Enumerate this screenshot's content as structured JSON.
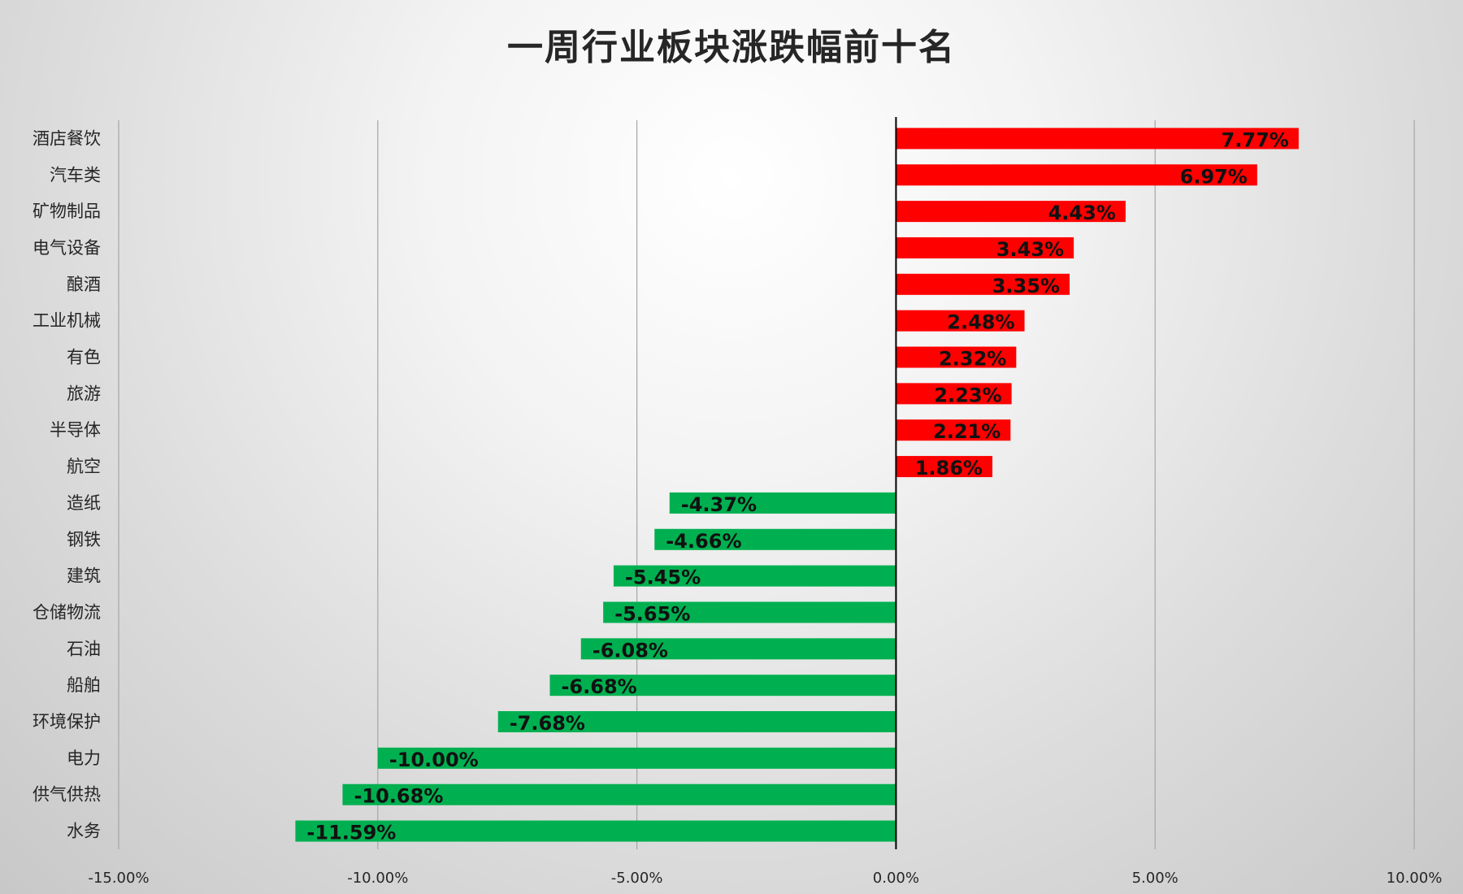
{
  "chart_data": {
    "type": "bar",
    "orientation": "horizontal",
    "title": "一周行业板块涨跌幅前十名",
    "xlabel": "",
    "ylabel": "",
    "xlim": [
      -15,
      10
    ],
    "x_ticks": [
      "-15.00%",
      "-10.00%",
      "-5.00%",
      "0.00%",
      "5.00%",
      "10.00%"
    ],
    "x_tick_values": [
      -15,
      -10,
      -5,
      0,
      5,
      10
    ],
    "grid": "vertical",
    "colors": {
      "positive": "#ff0000",
      "negative": "#00b050"
    },
    "categories": [
      "酒店餐饮",
      "汽车类",
      "矿物制品",
      "电气设备",
      "酿酒",
      "工业机械",
      "有色",
      "旅游",
      "半导体",
      "航空",
      "造纸",
      "钢铁",
      "建筑",
      "仓储物流",
      "石油",
      "船舶",
      "环境保护",
      "电力",
      "供气供热",
      "水务"
    ],
    "values": [
      7.77,
      6.97,
      4.43,
      3.43,
      3.35,
      2.48,
      2.32,
      2.23,
      2.21,
      1.86,
      -4.37,
      -4.66,
      -5.45,
      -5.65,
      -6.08,
      -6.68,
      -7.68,
      -10.0,
      -10.68,
      -11.59
    ],
    "data_labels": [
      "7.77%",
      "6.97%",
      "4.43%",
      "3.43%",
      "3.35%",
      "2.48%",
      "2.32%",
      "2.23%",
      "2.21%",
      "1.86%",
      "-4.37%",
      "-4.66%",
      "-5.45%",
      "-5.65%",
      "-6.08%",
      "-6.68%",
      "-7.68%",
      "-10.00%",
      "-10.68%",
      "-11.59%"
    ]
  }
}
